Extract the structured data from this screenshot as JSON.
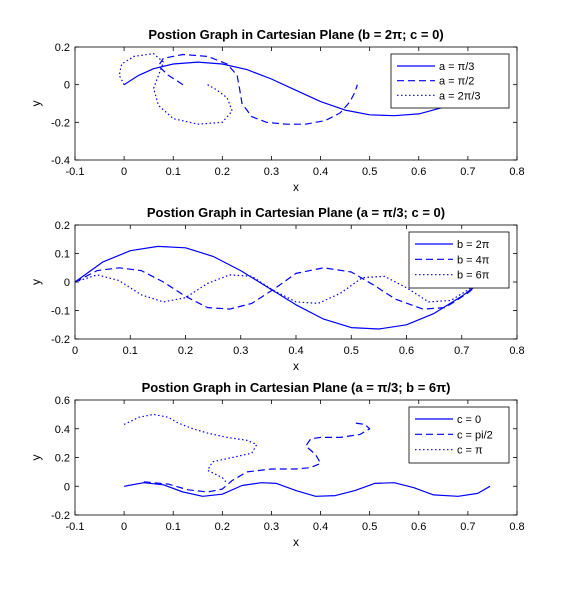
{
  "figure": {
    "chart_data": [
      {
        "type": "line",
        "title": "Postion Graph in Cartesian Plane (b = 2π; c = 0)",
        "xlabel": "x",
        "ylabel": "y",
        "xlim": [
          -0.1,
          0.8
        ],
        "ylim": [
          -0.4,
          0.2
        ],
        "xticks": [
          -0.1,
          0,
          0.1,
          0.2,
          0.3,
          0.4,
          0.5,
          0.6,
          0.7,
          0.8
        ],
        "yticks": [
          -0.4,
          -0.2,
          0,
          0.2
        ],
        "xtick_labels": [
          "-0.1",
          "0",
          "0.1",
          "0.2",
          "0.3",
          "0.4",
          "0.5",
          "0.6",
          "0.7",
          "0.8"
        ],
        "ytick_labels": [
          "-0.4",
          "-0.2",
          "0",
          "0.2"
        ],
        "legend": "top-right",
        "series": [
          {
            "name": "a = π/3",
            "style": "solid",
            "x": [
              0,
              0.03,
              0.06,
              0.1,
              0.15,
              0.2,
              0.25,
              0.3,
              0.35,
              0.4,
              0.45,
              0.5,
              0.55,
              0.6,
              0.65,
              0.7,
              0.73
            ],
            "y": [
              0,
              0.05,
              0.085,
              0.11,
              0.12,
              0.11,
              0.08,
              0.03,
              -0.03,
              -0.09,
              -0.135,
              -0.16,
              -0.165,
              -0.155,
              -0.12,
              -0.06,
              0
            ]
          },
          {
            "name": "a = π/2",
            "style": "dashed",
            "x": [
              0.12,
              0.09,
              0.07,
              0.08,
              0.12,
              0.17,
              0.21,
              0.23,
              0.235,
              0.24,
              0.26,
              0.29,
              0.33,
              0.37,
              0.41,
              0.44,
              0.46,
              0.47,
              0.475
            ],
            "y": [
              0,
              0.05,
              0.1,
              0.14,
              0.16,
              0.15,
              0.11,
              0.05,
              -0.02,
              -0.1,
              -0.17,
              -0.2,
              -0.21,
              -0.21,
              -0.19,
              -0.15,
              -0.09,
              -0.04,
              0
            ]
          },
          {
            "name": "a = 2π/3",
            "style": "dotted",
            "x": [
              0,
              -0.01,
              -0.005,
              0.02,
              0.06,
              0.08,
              0.07,
              0.06,
              0.07,
              0.1,
              0.15,
              0.2,
              0.22,
              0.21,
              0.19,
              0.17
            ],
            "y": [
              0,
              0.05,
              0.11,
              0.15,
              0.165,
              0.12,
              0.05,
              -0.02,
              -0.11,
              -0.18,
              -0.21,
              -0.2,
              -0.14,
              -0.07,
              -0.03,
              0
            ]
          }
        ]
      },
      {
        "type": "line",
        "title": "Postion Graph in Cartesian Plane (a = π/3; c = 0)",
        "xlabel": "x",
        "ylabel": "y",
        "xlim": [
          0,
          0.8
        ],
        "ylim": [
          -0.2,
          0.2
        ],
        "xticks": [
          0,
          0.1,
          0.2,
          0.3,
          0.4,
          0.5,
          0.6,
          0.7,
          0.8
        ],
        "yticks": [
          -0.2,
          -0.1,
          0,
          0.1,
          0.2
        ],
        "xtick_labels": [
          "0",
          "0.1",
          "0.2",
          "0.3",
          "0.4",
          "0.5",
          "0.6",
          "0.7",
          "0.8"
        ],
        "ytick_labels": [
          "-0.2",
          "-0.1",
          "0",
          "0.1",
          "0.2"
        ],
        "legend": "top-right",
        "series": [
          {
            "name": "b = 2π",
            "style": "solid",
            "x": [
              0,
              0.05,
              0.1,
              0.15,
              0.2,
              0.25,
              0.3,
              0.35,
              0.4,
              0.45,
              0.5,
              0.55,
              0.6,
              0.65,
              0.7,
              0.735
            ],
            "y": [
              0,
              0.07,
              0.11,
              0.125,
              0.12,
              0.09,
              0.04,
              -0.02,
              -0.08,
              -0.13,
              -0.16,
              -0.165,
              -0.15,
              -0.11,
              -0.05,
              0
            ]
          },
          {
            "name": "b = 4π",
            "style": "dashed",
            "x": [
              0,
              0.04,
              0.08,
              0.12,
              0.16,
              0.2,
              0.24,
              0.28,
              0.32,
              0.36,
              0.4,
              0.45,
              0.5,
              0.54,
              0.58,
              0.63,
              0.67,
              0.71,
              0.735
            ],
            "y": [
              0,
              0.04,
              0.05,
              0.04,
              0,
              -0.05,
              -0.09,
              -0.095,
              -0.075,
              -0.025,
              0.03,
              0.05,
              0.035,
              -0.01,
              -0.06,
              -0.095,
              -0.09,
              -0.04,
              0
            ]
          },
          {
            "name": "b = 6π",
            "style": "dotted",
            "x": [
              0,
              0.04,
              0.08,
              0.12,
              0.16,
              0.2,
              0.24,
              0.28,
              0.32,
              0.36,
              0.4,
              0.44,
              0.48,
              0.52,
              0.56,
              0.6,
              0.64,
              0.68,
              0.735
            ],
            "y": [
              0,
              0.025,
              0.005,
              -0.045,
              -0.07,
              -0.055,
              -0.005,
              0.025,
              0.02,
              -0.03,
              -0.07,
              -0.075,
              -0.04,
              0.015,
              0.02,
              -0.02,
              -0.07,
              -0.065,
              0
            ]
          }
        ]
      },
      {
        "type": "line",
        "title": "Postion Graph in Cartesian Plane (a = π/3; b = 6π)",
        "xlabel": "x",
        "ylabel": "y",
        "xlim": [
          -0.1,
          0.8
        ],
        "ylim": [
          -0.2,
          0.6
        ],
        "xticks": [
          -0.1,
          0,
          0.1,
          0.2,
          0.3,
          0.4,
          0.5,
          0.6,
          0.7,
          0.8
        ],
        "yticks": [
          -0.2,
          0,
          0.2,
          0.4,
          0.6
        ],
        "xtick_labels": [
          "-0.1",
          "0",
          "0.1",
          "0.2",
          "0.3",
          "0.4",
          "0.5",
          "0.6",
          "0.7",
          "0.8"
        ],
        "ytick_labels": [
          "-0.2",
          "0",
          "0.2",
          "0.4",
          "0.6"
        ],
        "legend": "top-right",
        "series": [
          {
            "name": "c = 0",
            "style": "solid",
            "x": [
              0,
              0.04,
              0.08,
              0.12,
              0.16,
              0.2,
              0.24,
              0.28,
              0.31,
              0.35,
              0.39,
              0.43,
              0.47,
              0.51,
              0.55,
              0.59,
              0.63,
              0.68,
              0.72,
              0.745
            ],
            "y": [
              0,
              0.025,
              0.01,
              -0.04,
              -0.07,
              -0.055,
              0.005,
              0.025,
              0.02,
              -0.03,
              -0.07,
              -0.065,
              -0.03,
              0.02,
              0.025,
              -0.01,
              -0.06,
              -0.07,
              -0.05,
              0
            ]
          },
          {
            "name": "c = pi/2",
            "style": "dashed",
            "x": [
              0.04,
              0.09,
              0.13,
              0.17,
              0.2,
              0.22,
              0.25,
              0.3,
              0.35,
              0.38,
              0.4,
              0.39,
              0.37,
              0.38,
              0.4,
              0.44,
              0.48,
              0.5,
              0.49,
              0.47
            ],
            "y": [
              0.03,
              0.015,
              -0.025,
              -0.04,
              -0.02,
              0.04,
              0.1,
              0.12,
              0.12,
              0.13,
              0.16,
              0.22,
              0.28,
              0.33,
              0.34,
              0.34,
              0.36,
              0.4,
              0.43,
              0.44
            ]
          },
          {
            "name": "c = π",
            "style": "dotted",
            "x": [
              0,
              0.03,
              0.06,
              0.09,
              0.11,
              0.14,
              0.17,
              0.21,
              0.25,
              0.27,
              0.26,
              0.22,
              0.18,
              0.17,
              0.2,
              0.21
            ],
            "y": [
              0.43,
              0.48,
              0.5,
              0.48,
              0.44,
              0.4,
              0.37,
              0.34,
              0.32,
              0.29,
              0.23,
              0.2,
              0.17,
              0.11,
              0.06,
              0.02
            ]
          }
        ]
      }
    ]
  }
}
